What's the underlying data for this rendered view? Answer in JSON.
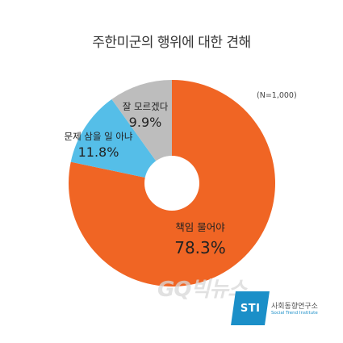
{
  "chart_data": {
    "type": "pie",
    "title": "주한미군의 행위에 대한 견해",
    "note": "(N=1,000)",
    "donut": true,
    "slices": [
      {
        "label": "책임 물어야",
        "value": 78.3,
        "value_label": "78.3%",
        "color": "#f06524"
      },
      {
        "label": "문제 삼을 일 아냐",
        "value": 11.8,
        "value_label": "11.8%",
        "color": "#55bee8"
      },
      {
        "label": "잘 모르겠다",
        "value": 9.9,
        "value_label": "9.9%",
        "color": "#bdbdbd"
      }
    ]
  },
  "watermark": "GQ빅뉴스",
  "logo": {
    "mark": "STI",
    "name": "사회동향연구소",
    "subtitle": "Social Trend Institute"
  }
}
